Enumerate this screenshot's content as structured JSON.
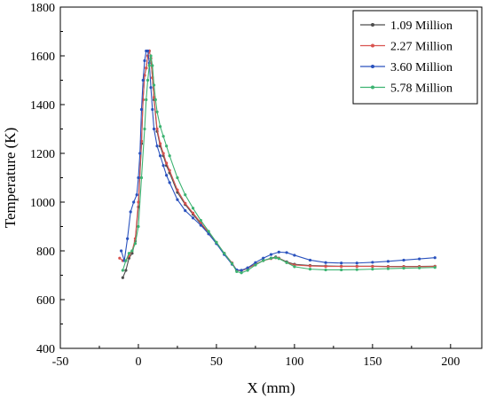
{
  "chart_data": {
    "type": "line",
    "title": "",
    "xlabel": "X (mm)",
    "ylabel": "Temperature (K)",
    "xlim": [
      -50,
      220
    ],
    "ylim": [
      400,
      1800
    ],
    "x_ticks": [
      -50,
      0,
      50,
      100,
      150,
      200
    ],
    "y_ticks": [
      400,
      600,
      800,
      1000,
      1200,
      1400,
      1600,
      1800
    ],
    "legend_position": "top-right",
    "grid": false,
    "series": [
      {
        "name": "1.09 Million",
        "color": "#4d4d4d",
        "x": [
          -10,
          -8,
          -6,
          -4,
          -2,
          0,
          2,
          3,
          4,
          5,
          6,
          7,
          8,
          9,
          10,
          12,
          14,
          16,
          18,
          20,
          25,
          30,
          35,
          40,
          45,
          50,
          55,
          60,
          63,
          66,
          70,
          75,
          80,
          85,
          88,
          90,
          95,
          100,
          110,
          120,
          130,
          140,
          150,
          160,
          170,
          180,
          190
        ],
        "y": [
          690,
          720,
          770,
          790,
          840,
          980,
          1240,
          1420,
          1520,
          1550,
          1600,
          1620,
          1590,
          1510,
          1420,
          1290,
          1230,
          1190,
          1150,
          1120,
          1040,
          990,
          950,
          910,
          870,
          830,
          790,
          750,
          720,
          720,
          730,
          745,
          760,
          770,
          775,
          770,
          755,
          745,
          740,
          738,
          737,
          737,
          737,
          736,
          736,
          736,
          737
        ]
      },
      {
        "name": "2.27 Million",
        "color": "#d9534f",
        "x": [
          -12,
          -10,
          -8,
          -6,
          -4,
          -2,
          0,
          2,
          3,
          4,
          5,
          6,
          7,
          8,
          9,
          10,
          12,
          14,
          16,
          18,
          20,
          25,
          30,
          35,
          40,
          45,
          50,
          55,
          60,
          63,
          66,
          70,
          75,
          80,
          85,
          88,
          90,
          95,
          100,
          110,
          120,
          130,
          140,
          150,
          160,
          170,
          180,
          190
        ],
        "y": [
          770,
          760,
          760,
          780,
          800,
          850,
          1000,
          1250,
          1420,
          1520,
          1550,
          1600,
          1620,
          1590,
          1510,
          1430,
          1300,
          1240,
          1200,
          1160,
          1130,
          1050,
          995,
          955,
          915,
          875,
          835,
          790,
          750,
          720,
          718,
          728,
          745,
          760,
          768,
          772,
          770,
          752,
          742,
          738,
          736,
          736,
          736,
          736,
          735,
          735,
          735,
          736
        ]
      },
      {
        "name": "3.60 Million",
        "color": "#2a52be",
        "x": [
          -11,
          -9,
          -7,
          -5,
          -3,
          -1,
          0,
          1,
          2,
          3,
          4,
          5,
          6,
          7,
          8,
          9,
          10,
          12,
          14,
          16,
          18,
          20,
          25,
          30,
          35,
          40,
          45,
          50,
          55,
          60,
          63,
          66,
          70,
          75,
          80,
          85,
          90,
          95,
          100,
          110,
          120,
          130,
          140,
          150,
          160,
          170,
          180,
          190
        ],
        "y": [
          800,
          760,
          850,
          960,
          1000,
          1030,
          1100,
          1200,
          1380,
          1500,
          1580,
          1620,
          1620,
          1570,
          1470,
          1380,
          1300,
          1230,
          1190,
          1150,
          1110,
          1080,
          1010,
          965,
          935,
          905,
          870,
          830,
          785,
          745,
          722,
          720,
          730,
          752,
          770,
          785,
          795,
          793,
          782,
          762,
          752,
          750,
          750,
          753,
          757,
          762,
          767,
          772
        ]
      },
      {
        "name": "5.78 Million",
        "color": "#3cb371",
        "x": [
          -10,
          -8,
          -6,
          -4,
          -2,
          0,
          2,
          4,
          5,
          6,
          7,
          8,
          9,
          10,
          11,
          12,
          14,
          16,
          18,
          20,
          25,
          30,
          35,
          40,
          45,
          50,
          55,
          60,
          63,
          66,
          70,
          75,
          80,
          85,
          88,
          90,
          95,
          100,
          110,
          120,
          130,
          140,
          150,
          160,
          170,
          180,
          190
        ],
        "y": [
          720,
          760,
          790,
          800,
          830,
          900,
          1100,
          1300,
          1420,
          1500,
          1560,
          1600,
          1560,
          1480,
          1420,
          1370,
          1310,
          1270,
          1230,
          1190,
          1100,
          1030,
          975,
          925,
          880,
          835,
          790,
          748,
          715,
          710,
          720,
          742,
          760,
          770,
          772,
          768,
          752,
          735,
          725,
          722,
          722,
          723,
          725,
          727,
          729,
          730,
          732
        ]
      }
    ]
  }
}
